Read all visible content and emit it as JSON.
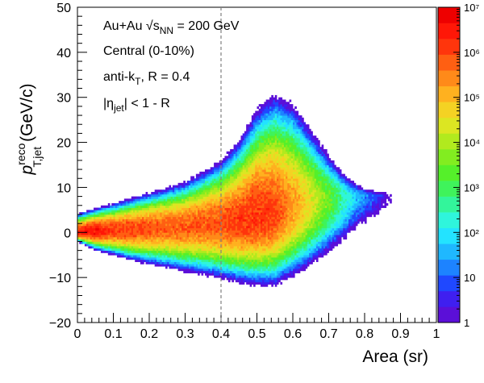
{
  "chart_data": {
    "type": "heatmap",
    "xlabel": "Area (sr)",
    "ylabel": {
      "main": "p",
      "sup": "reco",
      "sub": "T,jet",
      "unit": "(GeV/c)"
    },
    "xlim": [
      0,
      1
    ],
    "ylim": [
      -20,
      50
    ],
    "x_ticks": [
      "0",
      "0.1",
      "0.2",
      "0.3",
      "0.4",
      "0.5",
      "0.6",
      "0.7",
      "0.8",
      "0.9",
      "1"
    ],
    "y_ticks": [
      "−20",
      "−10",
      "0",
      "10",
      "20",
      "30",
      "40",
      "50"
    ],
    "reference_line": {
      "x": 0.4,
      "style": "dashed",
      "color": "#808080"
    },
    "annotations": [
      {
        "text": "Au+Au  √s",
        "sub": "NN",
        "tail": " = 200 GeV"
      },
      {
        "text": "Central (0-10%)"
      },
      {
        "text": "anti-k",
        "sub": "T",
        "tail": ", R = 0.4"
      },
      {
        "text": "|η",
        "sub": "jet",
        "tail": "| < 1 - R"
      }
    ],
    "colorbar": {
      "scale": "log",
      "range": [
        1,
        10000000
      ],
      "labels": [
        "1",
        "10",
        "10²",
        "10³",
        "10⁴",
        "10⁵",
        "10⁶",
        "10⁷"
      ],
      "colors": [
        "#5b0fd8",
        "#3f1ff0",
        "#1f48ff",
        "#1d83ff",
        "#1fb8ff",
        "#23e3ff",
        "#2ff5dc",
        "#33f59b",
        "#3ff35b",
        "#55f02a",
        "#82ed20",
        "#b1ea1e",
        "#dce622",
        "#f4d223",
        "#ffb11f",
        "#ff8a19",
        "#ff5f12",
        "#ff350c",
        "#ff1707",
        "#ee0000"
      ]
    },
    "density_model": {
      "ridge_y": [
        [
          0.0,
          0.0
        ],
        [
          0.1,
          0.5
        ],
        [
          0.3,
          1.5
        ],
        [
          0.45,
          2.5
        ],
        [
          0.55,
          4.0
        ],
        [
          0.65,
          6.5
        ],
        [
          0.75,
          8.0
        ],
        [
          0.85,
          8.5
        ]
      ],
      "upper_halfwidth": [
        [
          0.0,
          4.0
        ],
        [
          0.05,
          5.0
        ],
        [
          0.15,
          7.0
        ],
        [
          0.3,
          10.0
        ],
        [
          0.4,
          14.0
        ],
        [
          0.45,
          18.0
        ],
        [
          0.5,
          24.0
        ],
        [
          0.55,
          27.0
        ],
        [
          0.6,
          25.0
        ],
        [
          0.65,
          19.0
        ],
        [
          0.7,
          13.0
        ],
        [
          0.75,
          7.0
        ],
        [
          0.8,
          3.0
        ],
        [
          0.85,
          1.0
        ]
      ],
      "lower_halfwidth": [
        [
          0.0,
          2.0
        ],
        [
          0.05,
          4.0
        ],
        [
          0.15,
          7.0
        ],
        [
          0.3,
          10.5
        ],
        [
          0.4,
          12.5
        ],
        [
          0.5,
          15.0
        ],
        [
          0.55,
          16.0
        ],
        [
          0.65,
          16.0
        ],
        [
          0.75,
          14.0
        ],
        [
          0.82,
          11.0
        ],
        [
          0.88,
          9.0
        ]
      ],
      "peak_log10": [
        [
          0.0,
          6.4
        ],
        [
          0.04,
          6.6
        ],
        [
          0.1,
          6.1
        ],
        [
          0.25,
          5.8
        ],
        [
          0.35,
          5.8
        ],
        [
          0.5,
          6.2
        ],
        [
          0.55,
          6.0
        ],
        [
          0.62,
          5.0
        ],
        [
          0.7,
          3.5
        ],
        [
          0.78,
          1.6
        ],
        [
          0.85,
          0.5
        ],
        [
          0.9,
          -1.0
        ]
      ],
      "x_range": [
        0.0,
        0.92
      ]
    }
  }
}
